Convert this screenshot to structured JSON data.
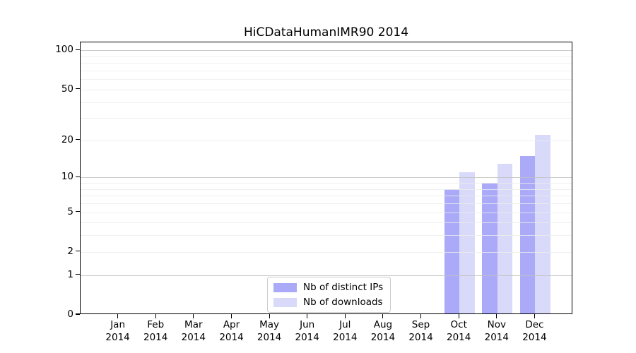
{
  "chart_data": {
    "type": "bar",
    "title": "HiCDataHumanIMR90 2014",
    "categories": [
      "Jan",
      "Feb",
      "Mar",
      "Apr",
      "May",
      "Jun",
      "Jul",
      "Aug",
      "Sep",
      "Oct",
      "Nov",
      "Dec"
    ],
    "year_label": "2014",
    "series": [
      {
        "name": "Nb of distinct IPs",
        "color": "#aaaaf8",
        "values": [
          0,
          0,
          0,
          0,
          0,
          0,
          0,
          0,
          0,
          8,
          9,
          15
        ]
      },
      {
        "name": "Nb of downloads",
        "color": "#d9d9fa",
        "values": [
          0,
          0,
          0,
          0,
          0,
          0,
          0,
          0,
          0,
          11,
          13,
          22
        ]
      }
    ],
    "yscale": "log1p",
    "yticks": [
      0,
      1,
      2,
      5,
      10,
      20,
      50,
      100
    ],
    "ylim": [
      0,
      115
    ],
    "grid": true,
    "legend_position": "bottom-center",
    "colors": {
      "axis": "#000000",
      "grid_major": "#c8c8c8",
      "grid_minor": "#ececec",
      "background": "#ffffff"
    }
  }
}
